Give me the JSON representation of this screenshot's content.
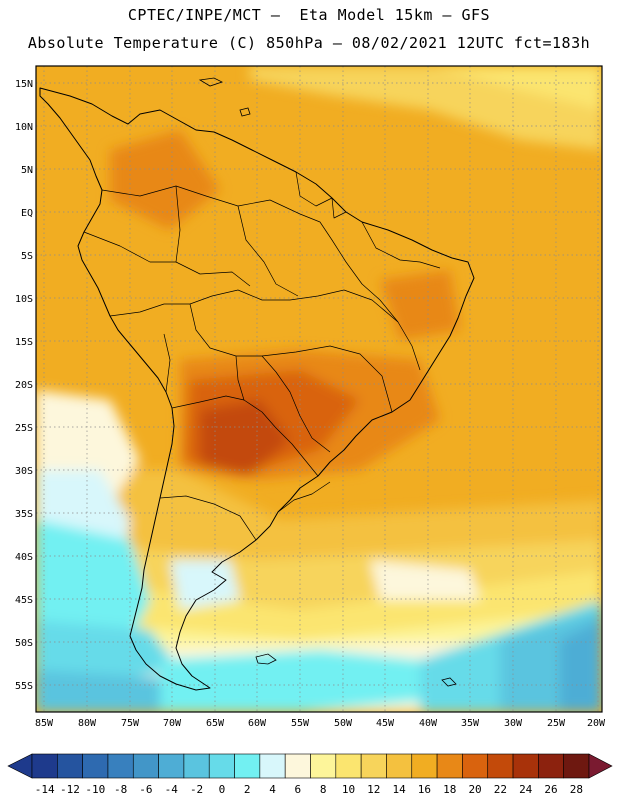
{
  "header": {
    "line1": "CPTEC/INPE/MCT –  Eta Model 15km – GFS",
    "line2": "Absolute Temperature (C) 850hPa – 08/02/2021 12UTC fct=183h"
  },
  "map": {
    "lat_ticks": [
      "15N",
      "10N",
      "5N",
      "EQ",
      "5S",
      "10S",
      "15S",
      "20S",
      "25S",
      "30S",
      "35S",
      "40S",
      "45S",
      "50S",
      "55S"
    ],
    "lon_ticks": [
      "85W",
      "80W",
      "75W",
      "70W",
      "65W",
      "60W",
      "55W",
      "50W",
      "45W",
      "40W",
      "35W",
      "30W",
      "25W",
      "20W"
    ],
    "grid": "dotted"
  },
  "colorbar": {
    "labels": [
      "-14",
      "-12",
      "-10",
      "-8",
      "-6",
      "-4",
      "-2",
      "0",
      "2",
      "4",
      "6",
      "8",
      "10",
      "12",
      "14",
      "16",
      "18",
      "20",
      "22",
      "24",
      "26",
      "28"
    ],
    "colors": [
      "#1e3a8c",
      "#25549f",
      "#2e6ab0",
      "#3880be",
      "#4296c8",
      "#4eadd5",
      "#5ac4df",
      "#66dbe9",
      "#72f0f2",
      "#d8f7fb",
      "#fdf7dc",
      "#fdf59a",
      "#fbe56f",
      "#f7d45b",
      "#f4c13f",
      "#f1ad22",
      "#e88817",
      "#d9630e",
      "#c34a0a",
      "#a8320a",
      "#8c220e",
      "#6e1810"
    ]
  }
}
